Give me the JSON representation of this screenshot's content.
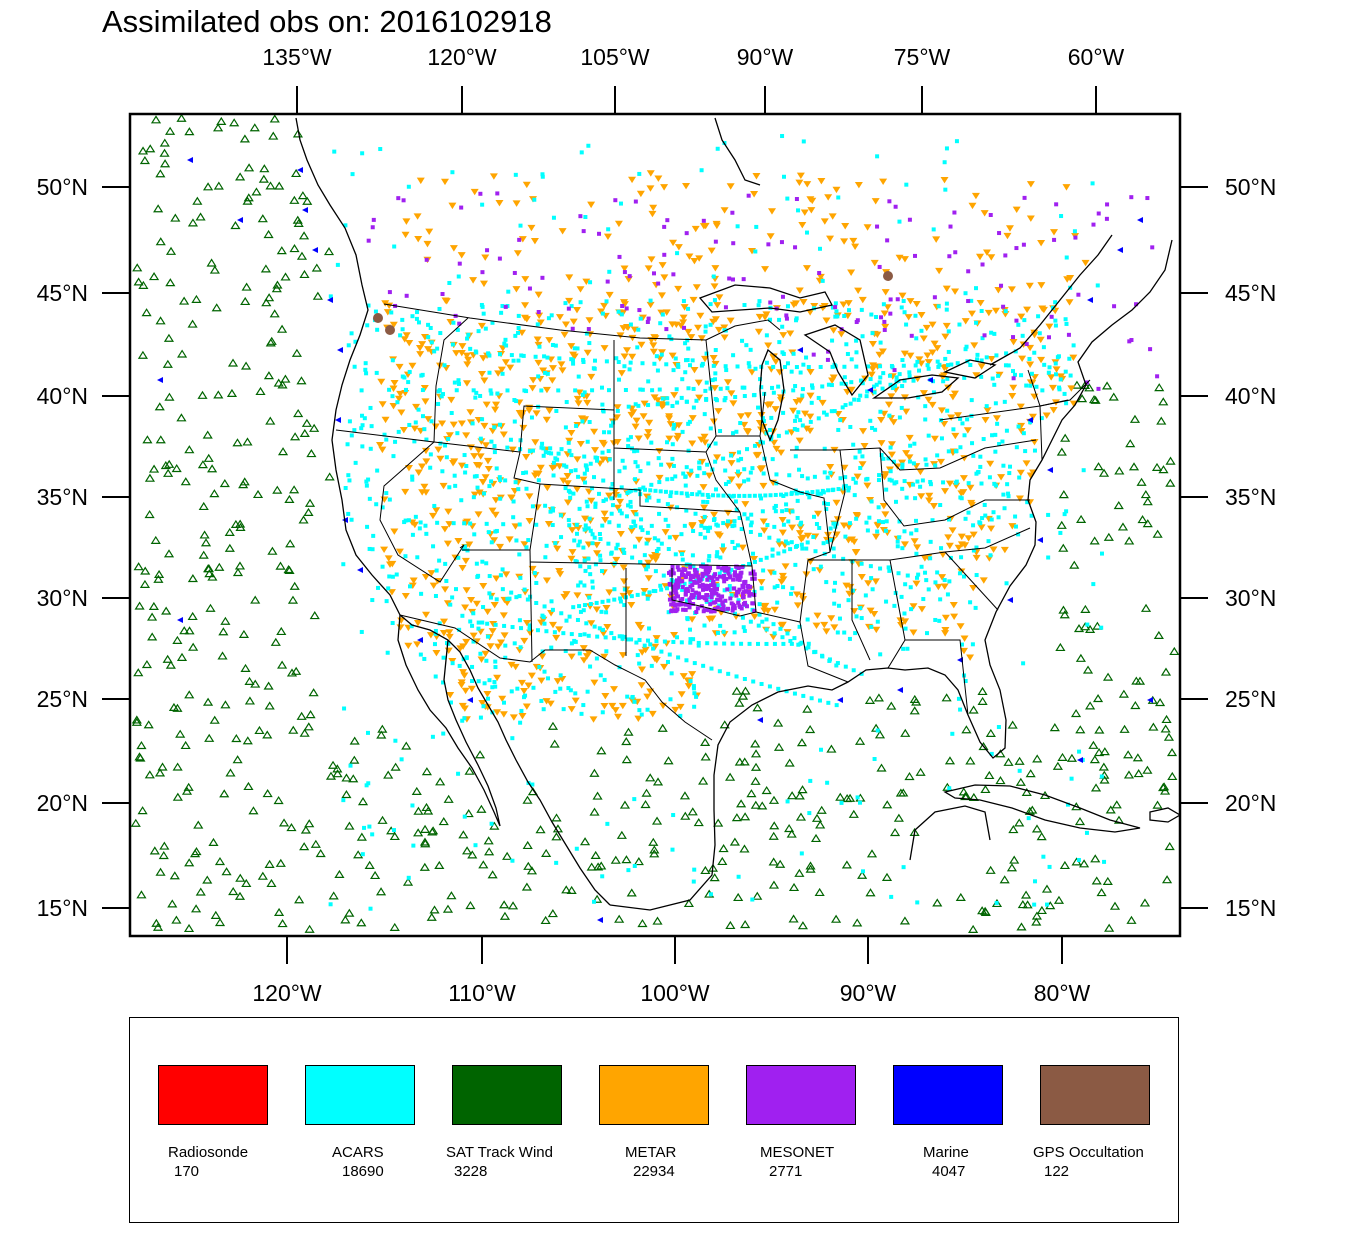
{
  "title": "Assimilated obs on: 2016102918",
  "top_lon_labels": [
    "135°W",
    "120°W",
    "105°W",
    "90°W",
    "75°W",
    "60°W"
  ],
  "bottom_lon_labels": [
    "120°W",
    "110°W",
    "100°W",
    "90°W",
    "80°W"
  ],
  "lat_labels": [
    "50°N",
    "45°N",
    "40°N",
    "35°N",
    "30°N",
    "25°N",
    "20°N",
    "15°N"
  ],
  "legend": [
    {
      "name": "Radiosonde",
      "count": "170",
      "color": "#ff0000"
    },
    {
      "name": "ACARS",
      "count": "18690",
      "color": "#00ffff"
    },
    {
      "name": "SAT Track Wind",
      "count": "3228",
      "color": "#006400"
    },
    {
      "name": "METAR",
      "count": "22934",
      "color": "#ffa500"
    },
    {
      "name": "MESONET",
      "count": "2771",
      "color": "#a020f0"
    },
    {
      "name": "Marine",
      "count": "4047",
      "color": "#0000ff"
    },
    {
      "name": "GPS Occultation",
      "count": "122",
      "color": "#8b5a44"
    }
  ]
}
